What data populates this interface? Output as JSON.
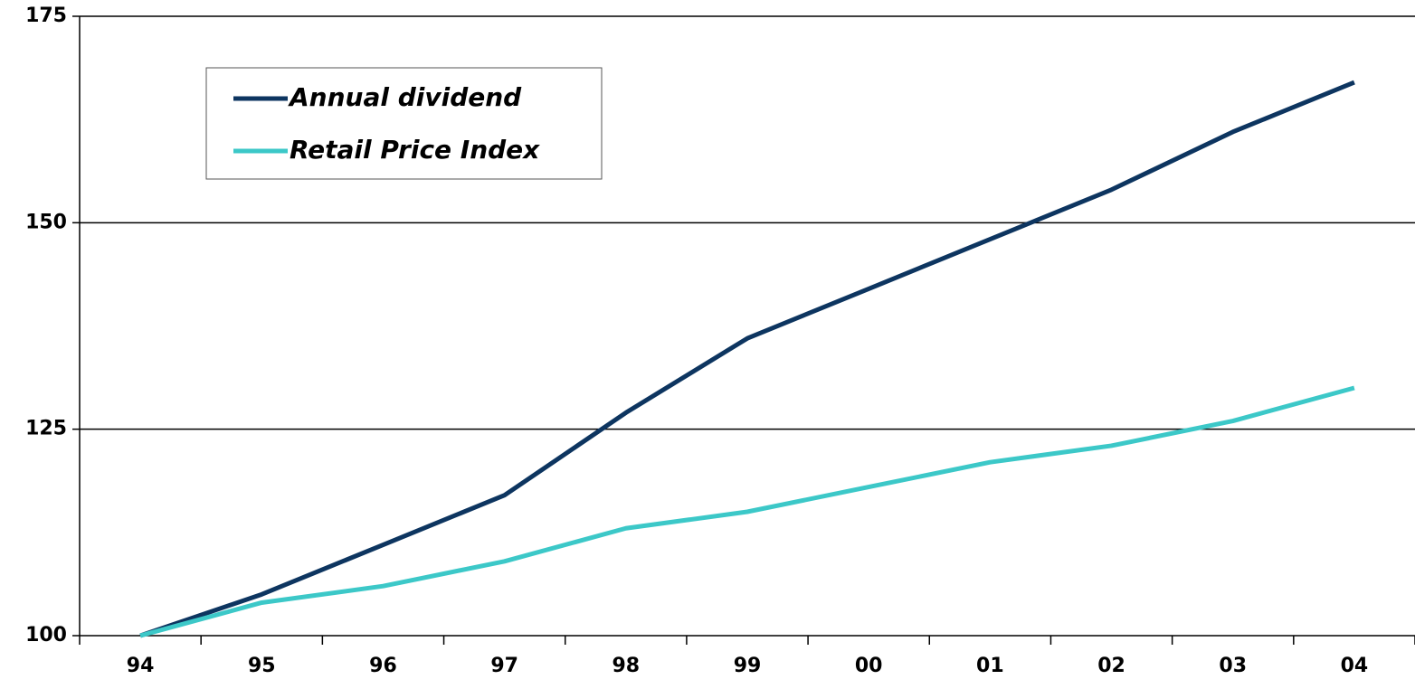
{
  "chart_data": {
    "type": "line",
    "categories": [
      "94",
      "95",
      "96",
      "97",
      "98",
      "99",
      "00",
      "01",
      "02",
      "03",
      "04"
    ],
    "series": [
      {
        "name": "Annual dividend",
        "color": "#0d3560",
        "values": [
          100,
          105,
          111,
          117,
          127,
          136,
          142,
          148,
          154,
          161,
          167
        ]
      },
      {
        "name": "Retail Price Index",
        "color": "#3cc8c8",
        "values": [
          100,
          104,
          106,
          109,
          113,
          115,
          118,
          121,
          123,
          126,
          130
        ]
      }
    ],
    "ylim": [
      100,
      175
    ],
    "yticks": [
      100,
      125,
      150,
      175
    ],
    "grid": true,
    "legend": "upper left"
  }
}
